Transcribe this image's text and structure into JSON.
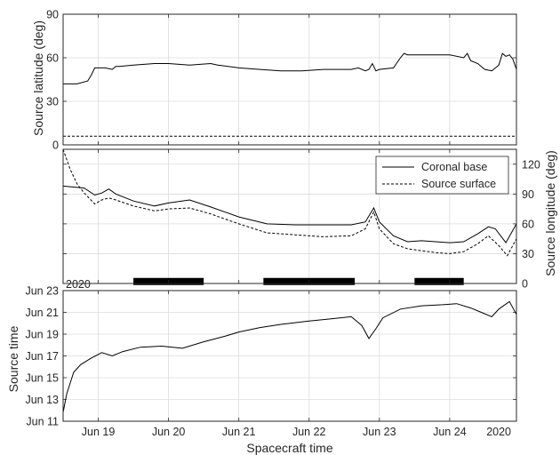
{
  "chart_data": [
    {
      "type": "line",
      "panel": "top",
      "ylabel": "Source latitude (deg)",
      "ylim": [
        0,
        90
      ],
      "yticks": [
        0,
        30,
        60,
        90
      ],
      "xlim": [
        18.5,
        24.95
      ],
      "xticks": [
        19,
        20,
        21,
        22,
        23,
        24
      ],
      "grid": true,
      "series": [
        {
          "style": "solid",
          "x": [
            18.5,
            18.7,
            18.85,
            18.9,
            18.95,
            19.1,
            19.2,
            19.25,
            19.3,
            19.5,
            19.8,
            20.0,
            20.3,
            20.6,
            20.7,
            21.0,
            21.3,
            21.6,
            21.9,
            22.2,
            22.6,
            22.7,
            22.8,
            22.85,
            22.9,
            22.95,
            23.0,
            23.2,
            23.3,
            23.35,
            23.4,
            23.6,
            23.8,
            24.0,
            24.2,
            24.25,
            24.3,
            24.4,
            24.5,
            24.6,
            24.7,
            24.75,
            24.8,
            24.85,
            24.9,
            24.95
          ],
          "y": [
            42,
            42,
            44,
            48,
            53,
            53,
            52,
            54,
            54,
            55,
            56,
            56,
            55,
            56,
            55,
            53,
            52,
            51,
            51,
            52,
            52,
            53,
            51,
            52,
            56,
            51,
            52,
            53,
            60,
            63,
            62,
            62,
            62,
            62,
            60,
            63,
            58,
            56,
            52,
            51,
            55,
            63,
            61,
            62,
            59,
            52
          ]
        },
        {
          "style": "dashed",
          "x": [
            18.5,
            24.95
          ],
          "y": [
            6,
            6
          ]
        }
      ]
    },
    {
      "type": "line",
      "panel": "middle",
      "ylabel": "Source longitude (deg)",
      "ylim": [
        0,
        135
      ],
      "yticks": [
        0,
        30,
        60,
        90,
        120
      ],
      "xlim": [
        18.5,
        24.95
      ],
      "xticks": [
        19,
        20,
        21,
        22,
        23,
        24
      ],
      "grid": true,
      "legend": "top-right",
      "annotation": "2020",
      "series": [
        {
          "name": "Coronal base",
          "style": "solid",
          "x": [
            18.5,
            18.8,
            18.95,
            19.05,
            19.15,
            19.25,
            19.5,
            19.8,
            20.0,
            20.3,
            20.6,
            21.0,
            21.4,
            21.8,
            22.2,
            22.6,
            22.8,
            22.92,
            23.0,
            23.2,
            23.4,
            23.6,
            23.8,
            24.0,
            24.2,
            24.4,
            24.55,
            24.65,
            24.8,
            24.95
          ],
          "y": [
            98,
            96,
            89,
            91,
            95,
            90,
            83,
            78,
            81,
            84,
            77,
            67,
            60,
            59,
            59,
            59,
            62,
            76,
            62,
            48,
            42,
            43,
            42,
            41,
            42,
            50,
            57,
            55,
            41,
            60
          ]
        },
        {
          "name": "Source surface",
          "style": "dashed",
          "x": [
            18.5,
            18.6,
            18.7,
            18.8,
            18.95,
            19.05,
            19.15,
            19.25,
            19.5,
            19.8,
            20.0,
            20.3,
            20.6,
            21.0,
            21.4,
            21.8,
            22.2,
            22.6,
            22.8,
            22.92,
            23.0,
            23.2,
            23.4,
            23.6,
            23.8,
            24.0,
            24.2,
            24.4,
            24.55,
            24.7,
            24.82,
            24.95
          ],
          "y": [
            135,
            115,
            100,
            91,
            80,
            84,
            86,
            84,
            78,
            73,
            75,
            76,
            70,
            60,
            51,
            49,
            47,
            48,
            55,
            72,
            55,
            40,
            35,
            33,
            31,
            30,
            32,
            40,
            48,
            38,
            28,
            45
          ]
        }
      ],
      "bars_y": 2,
      "bars": [
        [
          19.5,
          20.5
        ],
        [
          21.35,
          22.65
        ],
        [
          23.5,
          24.2
        ]
      ]
    },
    {
      "type": "line",
      "panel": "bottom",
      "ylabel": "Source time",
      "xlabel": "Spacecraft time",
      "ylim": [
        11,
        23
      ],
      "yticks": [
        11,
        13,
        15,
        17,
        19,
        21,
        23
      ],
      "yticklabels": [
        "Jun 11",
        "Jun 13",
        "Jun 15",
        "Jun 17",
        "Jun 19",
        "Jun 21",
        "Jun 23"
      ],
      "xlim": [
        18.5,
        24.95
      ],
      "xticks": [
        19,
        20,
        21,
        22,
        23,
        24
      ],
      "xticklabels": [
        "Jun 19",
        "Jun 20",
        "Jun 21",
        "Jun 22",
        "Jun 23",
        "Jun 24"
      ],
      "annotation": "2020",
      "grid": true,
      "series": [
        {
          "style": "solid",
          "x": [
            18.5,
            18.55,
            18.65,
            18.75,
            18.9,
            19.05,
            19.2,
            19.35,
            19.6,
            19.9,
            20.2,
            20.5,
            20.8,
            21.0,
            21.3,
            21.6,
            22.0,
            22.3,
            22.6,
            22.75,
            22.85,
            22.95,
            23.05,
            23.3,
            23.6,
            23.9,
            24.1,
            24.3,
            24.45,
            24.6,
            24.7,
            24.85,
            24.95
          ],
          "y": [
            11.8,
            13.5,
            15.5,
            16.2,
            16.8,
            17.3,
            17.0,
            17.4,
            17.8,
            17.9,
            17.7,
            18.3,
            18.8,
            19.2,
            19.6,
            19.9,
            20.2,
            20.4,
            20.6,
            19.8,
            18.6,
            19.5,
            20.5,
            21.3,
            21.6,
            21.7,
            21.8,
            21.4,
            21.0,
            20.6,
            21.3,
            22.0,
            20.8
          ]
        }
      ]
    }
  ]
}
